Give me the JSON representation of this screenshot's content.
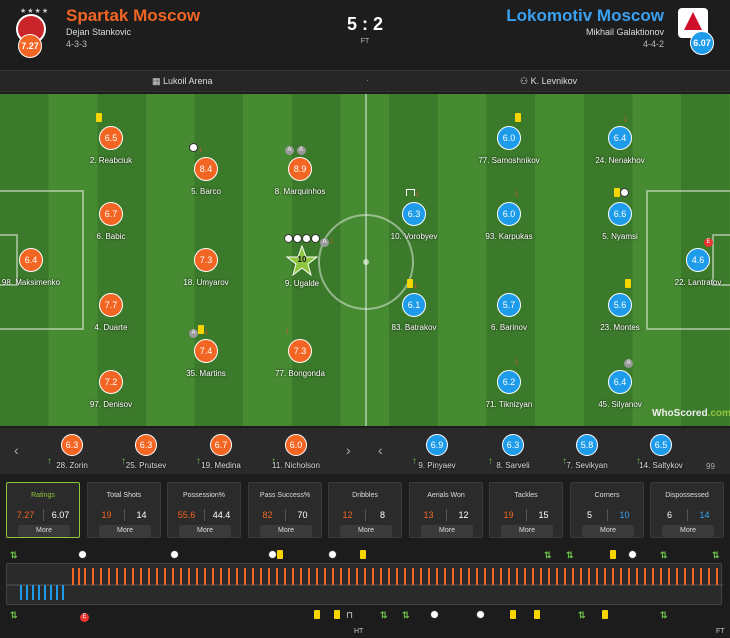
{
  "header": {
    "home_name": "Spartak Moscow",
    "home_manager": "Dejan Stankovic",
    "home_formation": "4-3-3",
    "home_rating": "7.27",
    "home_stars": "★★★★",
    "away_name": "Lokomotiv Moscow",
    "away_manager": "Mikhail Galaktionov",
    "away_formation": "4-4-2",
    "away_rating": "6.07",
    "score": "5 : 2",
    "status": "FT"
  },
  "info": {
    "venue": "Lukoil Arena",
    "referee": "K. Levnikov",
    "sep": "·"
  },
  "home_players": [
    {
      "name": "98. Maksimenko",
      "rating": "6.4"
    },
    {
      "name": "2. Reabciuk",
      "rating": "6.5"
    },
    {
      "name": "6. Babic",
      "rating": "6.7"
    },
    {
      "name": "4. Duarte",
      "rating": "7.7"
    },
    {
      "name": "97. Denisov",
      "rating": "7.2"
    },
    {
      "name": "5. Barco",
      "rating": "8.4"
    },
    {
      "name": "18. Umyarov",
      "rating": "7.3"
    },
    {
      "name": "35. Martins",
      "rating": "7.4"
    },
    {
      "name": "8. Marquinhos",
      "rating": "8.9"
    },
    {
      "name": "9. Ugalde",
      "rating": "10"
    },
    {
      "name": "77. Bongonda",
      "rating": "7.3"
    }
  ],
  "away_players": [
    {
      "name": "77. Samoshnikov",
      "rating": "6.0"
    },
    {
      "name": "24. Nenakhov",
      "rating": "6.4"
    },
    {
      "name": "10. Vorobyev",
      "rating": "6.3"
    },
    {
      "name": "93. Karpukas",
      "rating": "6.0"
    },
    {
      "name": "5. Nyamsi",
      "rating": "6.6"
    },
    {
      "name": "22. Lantratov",
      "rating": "4.6"
    },
    {
      "name": "83. Batrakov",
      "rating": "6.1"
    },
    {
      "name": "6. Barinov",
      "rating": "5.7"
    },
    {
      "name": "23. Montes",
      "rating": "5.6"
    },
    {
      "name": "71. Tiknizyan",
      "rating": "6.2"
    },
    {
      "name": "45. Silyanov",
      "rating": "6.4"
    }
  ],
  "subs_home": [
    {
      "name": "28. Zorin",
      "rating": "6.3"
    },
    {
      "name": "25. Prutsev",
      "rating": "6.3"
    },
    {
      "name": "19. Medina",
      "rating": "6.7"
    },
    {
      "name": "11. Nicholson",
      "rating": "6.0"
    }
  ],
  "subs_away": [
    {
      "name": "9. Pinyaev",
      "rating": "6.9"
    },
    {
      "name": "8. Sarveli",
      "rating": "6.3"
    },
    {
      "name": "7. Sevikyan",
      "rating": "5.8"
    },
    {
      "name": "14. Saltykov",
      "rating": "6.5"
    }
  ],
  "subs_cut": "99",
  "icons": {
    "goal_ball": "football-icon",
    "captain_c": "C",
    "error_e": "E",
    "assist_a": "A"
  },
  "watermark": {
    "text": "WhoScored",
    "suffix": ".com"
  },
  "stats": [
    {
      "title": "Ratings",
      "home": "7.27",
      "away": "6.07",
      "more": "More"
    },
    {
      "title": "Total Shots",
      "home": "19",
      "away": "14",
      "more": "More"
    },
    {
      "title": "Possession%",
      "home": "55.6",
      "away": "44.4",
      "more": "More"
    },
    {
      "title": "Pass Success%",
      "home": "82",
      "away": "70",
      "more": "More"
    },
    {
      "title": "Dribbles",
      "home": "12",
      "away": "8",
      "more": "More"
    },
    {
      "title": "Aerials Won",
      "home": "13",
      "away": "12",
      "more": "More"
    },
    {
      "title": "Tackles",
      "home": "19",
      "away": "15",
      "more": "More"
    },
    {
      "title": "Corners",
      "home": "5",
      "away": "10",
      "more": "More"
    },
    {
      "title": "Dispossessed",
      "home": "6",
      "away": "14",
      "more": "More"
    }
  ],
  "timeline": {
    "ht": "HT",
    "ft": "FT"
  },
  "colors": {
    "home": "#f26522",
    "away": "#1e9be9",
    "accent": "#8cc63f"
  }
}
